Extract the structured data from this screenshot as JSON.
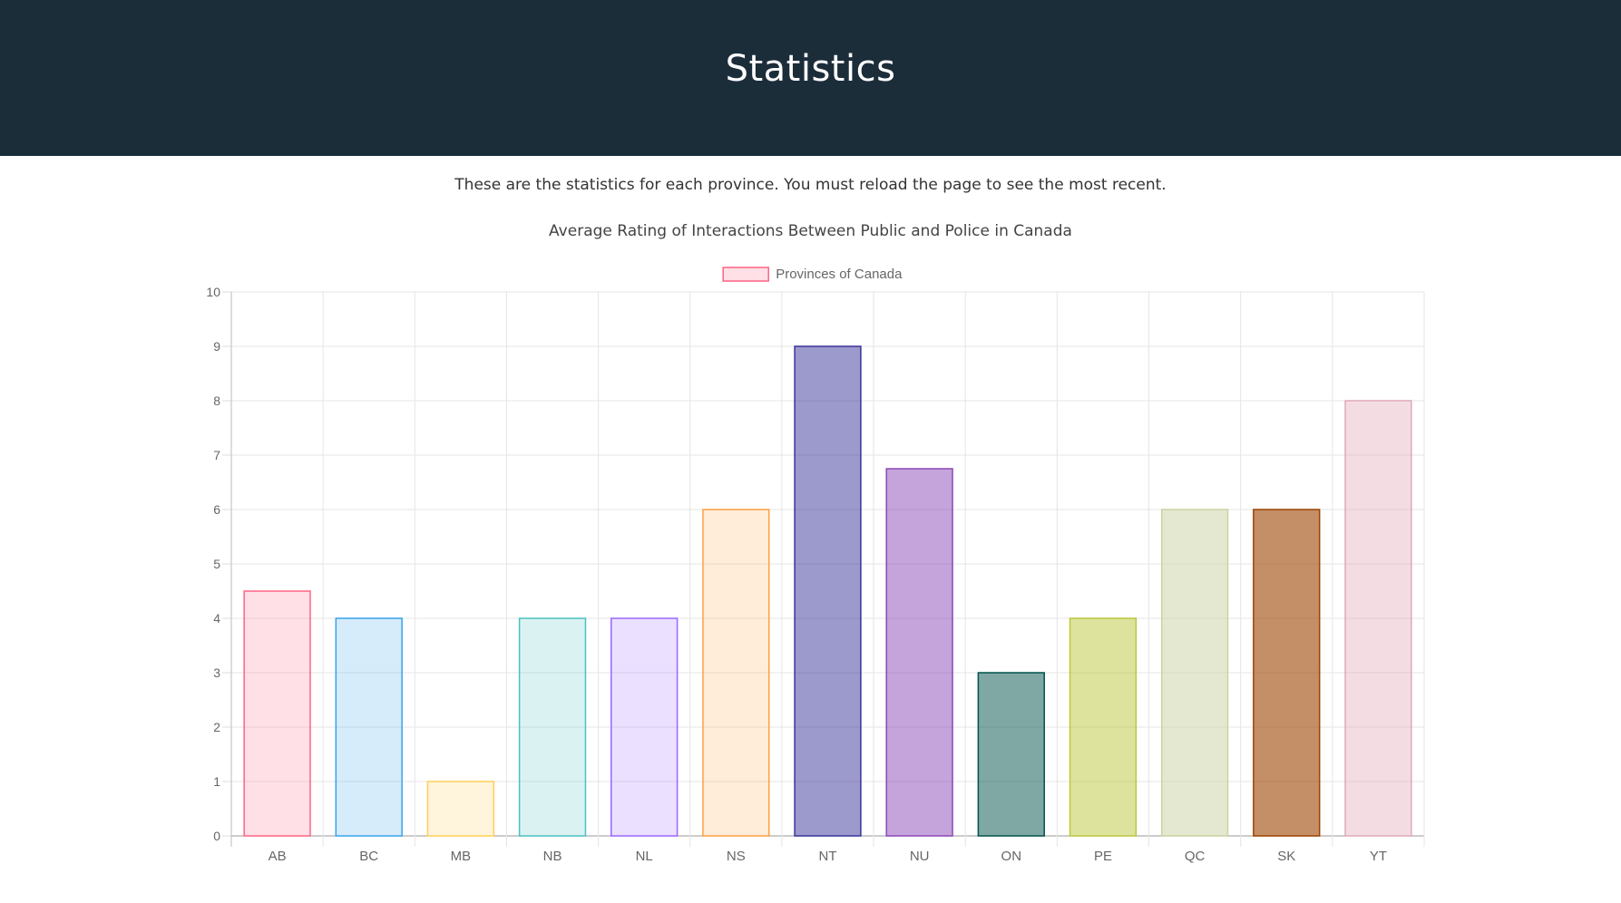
{
  "header": {
    "title": "Statistics"
  },
  "intro": "These are the statistics for each province. You must reload the page to see the most recent.",
  "chart_data": {
    "type": "bar",
    "title": "Average Rating of Interactions Between Public and Police in Canada",
    "legend": {
      "label": "Provinces of Canada",
      "position": "top-center",
      "color": "#ff6384"
    },
    "categories": [
      "AB",
      "BC",
      "MB",
      "NB",
      "NL",
      "NS",
      "NT",
      "NU",
      "ON",
      "PE",
      "QC",
      "SK",
      "YT"
    ],
    "series": [
      {
        "name": "Provinces of Canada",
        "values": [
          4.5,
          4,
          1,
          4,
          4,
          6,
          9,
          6.75,
          3,
          4,
          6,
          6,
          8
        ]
      }
    ],
    "ylim": [
      0,
      10
    ],
    "yticks": [
      0,
      1,
      2,
      3,
      4,
      5,
      6,
      7,
      8,
      9,
      10
    ],
    "grid": true,
    "colors": [
      {
        "fill": "rgba(255,99,132,0.2)",
        "stroke": "#ff6384"
      },
      {
        "fill": "rgba(54,162,235,0.2)",
        "stroke": "#36a2eb"
      },
      {
        "fill": "rgba(255,206,86,0.2)",
        "stroke": "#ffce56"
      },
      {
        "fill": "rgba(75,192,192,0.2)",
        "stroke": "#4bc0c0"
      },
      {
        "fill": "rgba(153,102,255,0.2)",
        "stroke": "#9966ff"
      },
      {
        "fill": "rgba(255,159,64,0.2)",
        "stroke": "#ff9f40"
      },
      {
        "fill": "rgba(57,51,153,0.5)",
        "stroke": "#393399"
      },
      {
        "fill": "rgba(140,72,183,0.5)",
        "stroke": "#8c48b7"
      },
      {
        "fill": "rgba(0,82,75,0.5)",
        "stroke": "#00524b"
      },
      {
        "fill": "rgba(188,199,59,0.5)",
        "stroke": "#bcc73b"
      },
      {
        "fill": "rgba(204,209,161,0.5)",
        "stroke": "#ccd1a1"
      },
      {
        "fill": "rgba(156,66,0,0.6)",
        "stroke": "#9c4200"
      },
      {
        "fill": "rgba(224,169,185,0.4)",
        "stroke": "#e0a9b9"
      }
    ]
  }
}
